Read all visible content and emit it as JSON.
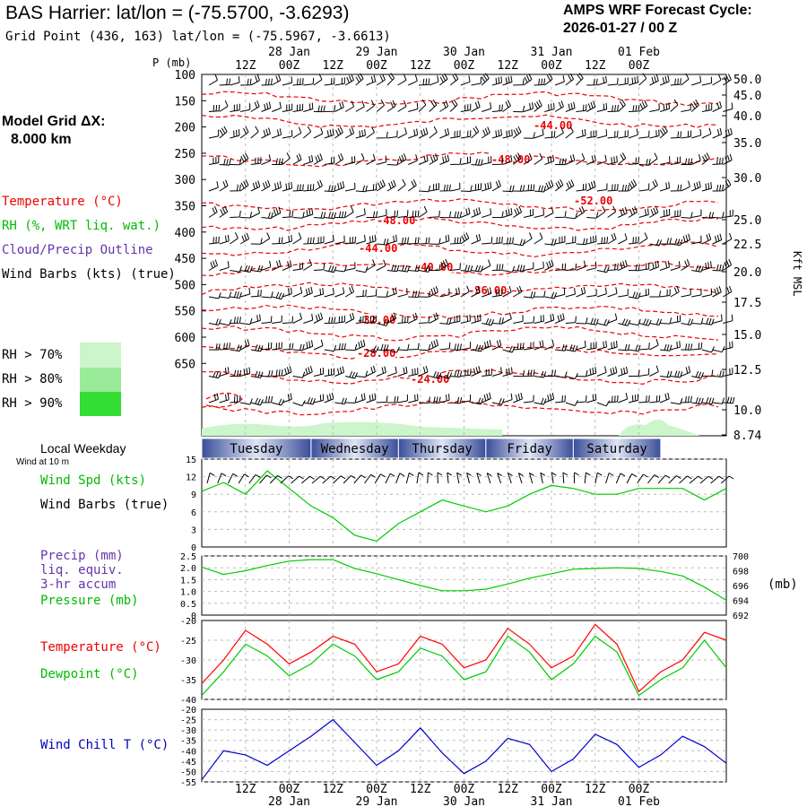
{
  "header": {
    "station_title": "BAS Harrier:  lat/lon = (-75.5700, -3.6293)",
    "grid_point": "Grid Point (436, 163) lat/lon = (-75.5967, -3.6613)",
    "cycle_label": "AMPS WRF Forecast Cycle:",
    "cycle_value": "2026-01-27 / 00  Z"
  },
  "model_grid": {
    "label": "Model Grid ΔX:",
    "value": "8.000 km"
  },
  "legend": {
    "temperature": "Temperature (°C)",
    "rh": "RH (%, WRT liq. wat.)",
    "cloud": "Cloud/Precip Outline",
    "wind": "Wind Barbs (kts) (true)",
    "rh_levels": [
      {
        "label": "RH > 70%",
        "color": "#ccf5cc"
      },
      {
        "label": "RH > 80%",
        "color": "#99ea99"
      },
      {
        "label": "RH > 90%",
        "color": "#33dd33"
      }
    ]
  },
  "colors": {
    "temperature": "#ff0000",
    "dewpoint": "#00cc00",
    "wind_speed": "#00cc00",
    "pressure": "#00cc00",
    "wind_chill": "#0000cc",
    "precip_label": "#7733aa",
    "grid": "#bbbbbb"
  },
  "time_axis": {
    "hours": [
      "12Z",
      "00Z",
      "12Z",
      "00Z",
      "12Z",
      "00Z",
      "12Z",
      "00Z",
      "12Z",
      "00Z"
    ],
    "dates": [
      "28 Jan",
      "29 Jan",
      "30 Jan",
      "31 Jan",
      "01 Feb"
    ]
  },
  "weekdays": {
    "title": "Local Weekday",
    "subtitle": "Wind at 10 m",
    "days": [
      "Tuesday",
      "Wednesday",
      "Thursday",
      "Friday",
      "Saturday"
    ]
  },
  "panel_labels": {
    "wind_spd": "Wind Spd (kts)",
    "wind_barbs": "Wind Barbs (true)",
    "precip1": "Precip (mm)",
    "precip2": "liq. equiv.",
    "precip3": "3-hr accum",
    "pressure": "Pressure (mb)",
    "pressure_unit": "(mb)",
    "temperature": "Temperature (°C)",
    "dewpoint": "Dewpoint (°C)",
    "wind_chill": "Wind Chill T (°C)"
  },
  "chart_data": [
    {
      "type": "contour",
      "name": "cross-section",
      "ylabel_left": "P (mb)",
      "ylabel_right": "Kft MSL",
      "p_ticks": [
        "100",
        "150",
        "200",
        "250",
        "300",
        "350",
        "400",
        "450",
        "500",
        "550",
        "600",
        "650"
      ],
      "height_ticks": [
        "50.0",
        "45.0",
        "40.0",
        "35.0",
        "30.0",
        "25.0",
        "22.5",
        "20.0",
        "17.5",
        "15.0",
        "12.5",
        "10.0",
        "8.74"
      ],
      "temperature_contour_labels": [
        "-44.00",
        "-48.00",
        "-52.00",
        "-48.00",
        "-44.00",
        "-40.00",
        "-36.00",
        "-32.00",
        "-28.00",
        "-24.00"
      ]
    },
    {
      "type": "line",
      "name": "wind speed",
      "ylim": [
        0,
        15
      ],
      "yticks": [
        "0",
        "3",
        "6",
        "9",
        "12",
        "15"
      ],
      "x_hours": [
        0,
        6,
        12,
        18,
        24,
        30,
        36,
        42,
        48,
        54,
        60,
        66,
        72,
        78,
        84,
        90,
        96,
        102,
        108,
        114,
        120,
        126,
        132,
        138,
        144
      ],
      "values": [
        9.5,
        11,
        9,
        13,
        10,
        7,
        5,
        2,
        1,
        4,
        6,
        8,
        7,
        6,
        7,
        9,
        10.5,
        10,
        9,
        9,
        10,
        10,
        10,
        8,
        10
      ]
    },
    {
      "type": "line",
      "name": "pressure",
      "yticks_left": [
        "0",
        "0.5",
        "1.0",
        "1.5",
        "2.0",
        "2.5"
      ],
      "yticks_right": [
        "700",
        "698",
        "696",
        "694",
        "692"
      ],
      "ylim_right": [
        692,
        700
      ],
      "values": [
        698.5,
        697.5,
        698,
        698.7,
        699.3,
        699.5,
        699.5,
        698.3,
        697.6,
        696.8,
        696,
        695.3,
        695.3,
        695.5,
        696.2,
        697,
        697.6,
        698.2,
        698.3,
        698.4,
        698.3,
        697.9,
        697.3,
        695.8,
        694
      ]
    },
    {
      "type": "line",
      "name": "temperature and dewpoint",
      "ylim": [
        -40,
        -20
      ],
      "yticks": [
        "-20",
        "-25",
        "-30",
        "-35",
        "-40"
      ],
      "series": [
        {
          "name": "Temperature",
          "values": [
            -36,
            -30,
            -22.5,
            -26,
            -31,
            -28,
            -24,
            -26,
            -33,
            -31,
            -24,
            -26,
            -32,
            -30,
            -22,
            -26,
            -32,
            -29,
            -21,
            -26,
            -38,
            -33,
            -30,
            -23,
            -25
          ]
        },
        {
          "name": "Dewpoint",
          "values": [
            -39,
            -33,
            -26,
            -29,
            -34,
            -31,
            -26,
            -29,
            -35,
            -33,
            -27,
            -29,
            -35,
            -33,
            -24,
            -28,
            -35,
            -31,
            -24,
            -28,
            -39,
            -35,
            -32,
            -25,
            -32
          ]
        }
      ]
    },
    {
      "type": "line",
      "name": "wind chill",
      "ylim": [
        -55,
        -20
      ],
      "yticks": [
        "-20",
        "-25",
        "-30",
        "-35",
        "-40",
        "-45",
        "-50",
        "-55"
      ],
      "values": [
        -54,
        -40,
        -42,
        -47,
        -40,
        -33,
        -25,
        -36,
        -47,
        -40,
        -29,
        -41,
        -51,
        -45,
        -34,
        -37,
        -50,
        -44,
        -32,
        -37,
        -48,
        -42,
        -33,
        -38,
        -46
      ]
    }
  ]
}
